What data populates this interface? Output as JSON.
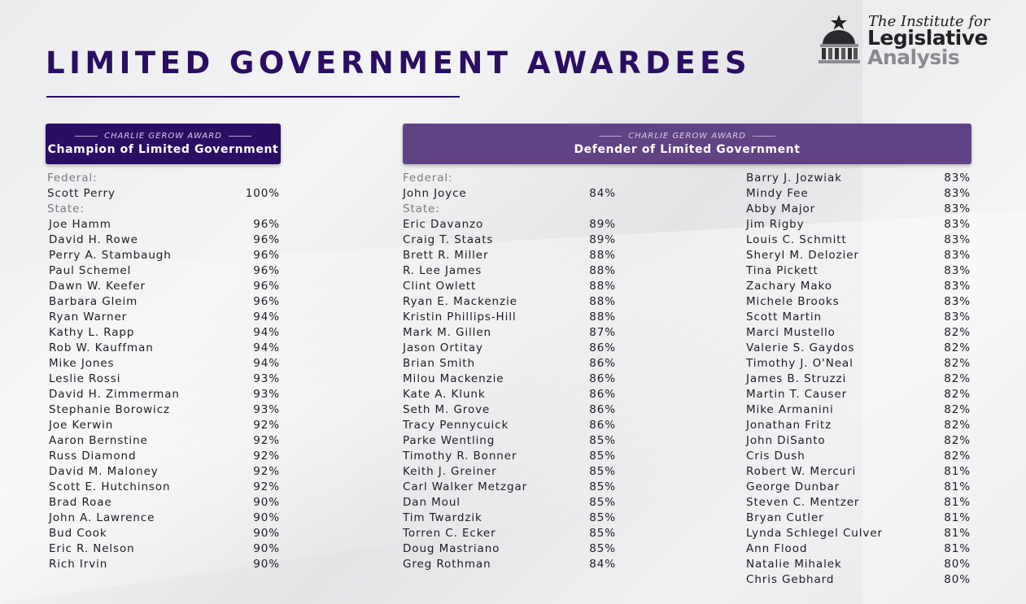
{
  "title": "LIMITED GOVERNMENT AWARDEES",
  "logo": {
    "line1": "The Institute for",
    "line2": "Legislative",
    "line3": "Analysis",
    "icon": "capitol-dome-icon"
  },
  "awards": {
    "champion": {
      "subtitle": "CHARLIE GEROW AWARD",
      "title": "Champion of Limited Government"
    },
    "defender": {
      "subtitle": "CHARLIE GEROW AWARD",
      "title": "Defender of Limited Government"
    }
  },
  "labels": {
    "federal": "Federal:",
    "state": "State:"
  },
  "champion": {
    "federal": [
      {
        "name": "Scott Perry",
        "pct": "100%"
      }
    ],
    "state": [
      {
        "name": "Joe Hamm",
        "pct": "96%"
      },
      {
        "name": "David H. Rowe",
        "pct": "96%"
      },
      {
        "name": "Perry A. Stambaugh",
        "pct": "96%"
      },
      {
        "name": "Paul Schemel",
        "pct": "96%"
      },
      {
        "name": "Dawn W. Keefer",
        "pct": "96%"
      },
      {
        "name": "Barbara Gleim",
        "pct": "96%"
      },
      {
        "name": "Ryan Warner",
        "pct": "94%"
      },
      {
        "name": "Kathy L. Rapp",
        "pct": "94%"
      },
      {
        "name": "Rob W. Kauffman",
        "pct": "94%"
      },
      {
        "name": "Mike Jones",
        "pct": "94%"
      },
      {
        "name": "Leslie Rossi",
        "pct": "93%"
      },
      {
        "name": "David H. Zimmerman",
        "pct": "93%"
      },
      {
        "name": "Stephanie Borowicz",
        "pct": "93%"
      },
      {
        "name": "Joe Kerwin",
        "pct": "92%"
      },
      {
        "name": "Aaron Bernstine",
        "pct": "92%"
      },
      {
        "name": "Russ Diamond",
        "pct": "92%"
      },
      {
        "name": "David M. Maloney",
        "pct": "92%"
      },
      {
        "name": "Scott E. Hutchinson",
        "pct": "92%"
      },
      {
        "name": "Brad Roae",
        "pct": "90%"
      },
      {
        "name": "John A. Lawrence",
        "pct": "90%"
      },
      {
        "name": "Bud Cook",
        "pct": "90%"
      },
      {
        "name": "Eric R. Nelson",
        "pct": "90%"
      },
      {
        "name": "Rich Irvin",
        "pct": "90%"
      }
    ]
  },
  "defender": {
    "federal": [
      {
        "name": "John Joyce",
        "pct": "84%"
      }
    ],
    "state": [
      {
        "name": "Eric Davanzo",
        "pct": "89%"
      },
      {
        "name": "Craig T. Staats",
        "pct": "89%"
      },
      {
        "name": "Brett R. Miller",
        "pct": "88%"
      },
      {
        "name": "R. Lee James",
        "pct": "88%"
      },
      {
        "name": "Clint Owlett",
        "pct": "88%"
      },
      {
        "name": "Ryan E. Mackenzie",
        "pct": "88%"
      },
      {
        "name": "Kristin Phillips-Hill",
        "pct": "88%"
      },
      {
        "name": "Mark M. Gillen",
        "pct": "87%"
      },
      {
        "name": "Jason Ortitay",
        "pct": "86%"
      },
      {
        "name": "Brian Smith",
        "pct": "86%"
      },
      {
        "name": "Milou Mackenzie",
        "pct": "86%"
      },
      {
        "name": "Kate A. Klunk",
        "pct": "86%"
      },
      {
        "name": "Seth M. Grove",
        "pct": "86%"
      },
      {
        "name": "Tracy Pennycuick",
        "pct": "86%"
      },
      {
        "name": "Parke Wentling",
        "pct": "85%"
      },
      {
        "name": "Timothy R. Bonner",
        "pct": "85%"
      },
      {
        "name": "Keith J. Greiner",
        "pct": "85%"
      },
      {
        "name": "Carl Walker Metzgar",
        "pct": "85%"
      },
      {
        "name": "Dan Moul",
        "pct": "85%"
      },
      {
        "name": "Tim Twardzik",
        "pct": "85%"
      },
      {
        "name": "Torren C. Ecker",
        "pct": "85%"
      },
      {
        "name": "Doug Mastriano",
        "pct": "85%"
      },
      {
        "name": "Greg Rothman",
        "pct": "84%"
      }
    ],
    "state_continued": [
      {
        "name": "Barry J. Jozwiak",
        "pct": "83%"
      },
      {
        "name": "Mindy Fee",
        "pct": "83%"
      },
      {
        "name": "Abby Major",
        "pct": "83%"
      },
      {
        "name": "Jim Rigby",
        "pct": "83%"
      },
      {
        "name": "Louis C. Schmitt",
        "pct": "83%"
      },
      {
        "name": "Sheryl M. Delozier",
        "pct": "83%"
      },
      {
        "name": "Tina Pickett",
        "pct": "83%"
      },
      {
        "name": "Zachary Mako",
        "pct": "83%"
      },
      {
        "name": "Michele Brooks",
        "pct": "83%"
      },
      {
        "name": "Scott Martin",
        "pct": "83%"
      },
      {
        "name": "Marci Mustello",
        "pct": "82%"
      },
      {
        "name": "Valerie S. Gaydos",
        "pct": "82%"
      },
      {
        "name": "Timothy J. O'Neal",
        "pct": "82%"
      },
      {
        "name": "James B. Struzzi",
        "pct": "82%"
      },
      {
        "name": "Martin T. Causer",
        "pct": "82%"
      },
      {
        "name": "Mike Armanini",
        "pct": "82%"
      },
      {
        "name": "Jonathan Fritz",
        "pct": "82%"
      },
      {
        "name": "John DiSanto",
        "pct": "82%"
      },
      {
        "name": "Cris Dush",
        "pct": "82%"
      },
      {
        "name": "Robert W. Mercuri",
        "pct": "81%"
      },
      {
        "name": "George Dunbar",
        "pct": "81%"
      },
      {
        "name": "Steven C. Mentzer",
        "pct": "81%"
      },
      {
        "name": "Bryan Cutler",
        "pct": "81%"
      },
      {
        "name": "Lynda Schlegel Culver",
        "pct": "81%"
      },
      {
        "name": "Ann Flood",
        "pct": "81%"
      },
      {
        "name": "Natalie Mihalek",
        "pct": "80%"
      },
      {
        "name": "Chris Gebhard",
        "pct": "80%"
      }
    ]
  },
  "colors": {
    "primary": "#2a0e63",
    "secondary": "#5f4384"
  }
}
